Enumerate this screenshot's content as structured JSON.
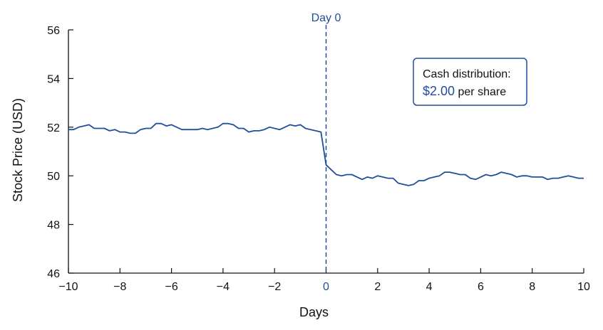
{
  "chart_data": {
    "type": "line",
    "xlabel": "Days",
    "ylabel": "Stock Price (USD)",
    "xlim": [
      -10,
      10
    ],
    "ylim": [
      46,
      56
    ],
    "xticks": [
      -10,
      -8,
      -6,
      -4,
      -2,
      0,
      2,
      4,
      6,
      8,
      10
    ],
    "xtick_labels": [
      "−10",
      "−8",
      "−6",
      "−4",
      "−2",
      "0",
      "2",
      "4",
      "6",
      "8",
      "10"
    ],
    "yticks": [
      46,
      48,
      50,
      52,
      54,
      56
    ],
    "grid": false,
    "line_color": "#1f4e9c",
    "event_line": {
      "x": 0,
      "label": "Day 0",
      "style": "dashed"
    },
    "annotation": {
      "line1": "Cash distribution:",
      "amount": "$2.00",
      "suffix": " per share"
    },
    "series": [
      {
        "x": [
          -10,
          -9.8,
          -9.6,
          -9.4,
          -9.2,
          -9.0,
          -8.8,
          -8.6,
          -8.4,
          -8.2,
          -8.0,
          -7.8,
          -7.6,
          -7.4,
          -7.2,
          -7.0,
          -6.8,
          -6.6,
          -6.4,
          -6.2,
          -6.0,
          -5.8,
          -5.6,
          -5.4,
          -5.2,
          -5.0,
          -4.8,
          -4.6,
          -4.4,
          -4.2,
          -4.0,
          -3.8,
          -3.6,
          -3.4,
          -3.2,
          -3.0,
          -2.8,
          -2.6,
          -2.4,
          -2.2,
          -2.0,
          -1.8,
          -1.6,
          -1.4,
          -1.2,
          -1.0,
          -0.8,
          -0.6,
          -0.4,
          -0.2,
          0.0,
          0.2,
          0.4,
          0.6,
          0.8,
          1.0,
          1.2,
          1.4,
          1.6,
          1.8,
          2.0,
          2.2,
          2.4,
          2.6,
          2.8,
          3.0,
          3.2,
          3.4,
          3.6,
          3.8,
          4.0,
          4.2,
          4.4,
          4.6,
          4.8,
          5.0,
          5.2,
          5.4,
          5.6,
          5.8,
          6.0,
          6.2,
          6.4,
          6.6,
          6.8,
          7.0,
          7.2,
          7.4,
          7.6,
          7.8,
          8.0,
          8.2,
          8.4,
          8.6,
          8.8,
          9.0,
          9.2,
          9.4,
          9.6,
          9.8,
          10.0
        ],
        "values": [
          51.9,
          51.9,
          52.0,
          52.05,
          52.1,
          51.95,
          51.95,
          51.95,
          51.85,
          51.9,
          51.8,
          51.8,
          51.75,
          51.75,
          51.9,
          51.95,
          51.95,
          52.15,
          52.15,
          52.05,
          52.1,
          52.0,
          51.9,
          51.9,
          51.9,
          51.9,
          51.95,
          51.9,
          51.95,
          52.0,
          52.15,
          52.15,
          52.1,
          51.95,
          51.95,
          51.8,
          51.85,
          51.85,
          51.9,
          52.0,
          51.95,
          51.9,
          52.0,
          52.1,
          52.05,
          52.1,
          51.95,
          51.9,
          51.85,
          51.8,
          50.45,
          50.25,
          50.05,
          50.0,
          50.05,
          50.05,
          49.95,
          49.85,
          49.95,
          49.9,
          50.0,
          49.95,
          49.9,
          49.9,
          49.7,
          49.65,
          49.6,
          49.65,
          49.8,
          49.8,
          49.9,
          49.95,
          50.0,
          50.15,
          50.15,
          50.1,
          50.05,
          50.05,
          49.9,
          49.85,
          49.95,
          50.05,
          50.0,
          50.05,
          50.15,
          50.1,
          50.05,
          49.95,
          50.0,
          50.0,
          49.95,
          49.95,
          49.95,
          49.85,
          49.9,
          49.9,
          49.95,
          50.0,
          49.95,
          49.9,
          49.9
        ]
      }
    ]
  }
}
